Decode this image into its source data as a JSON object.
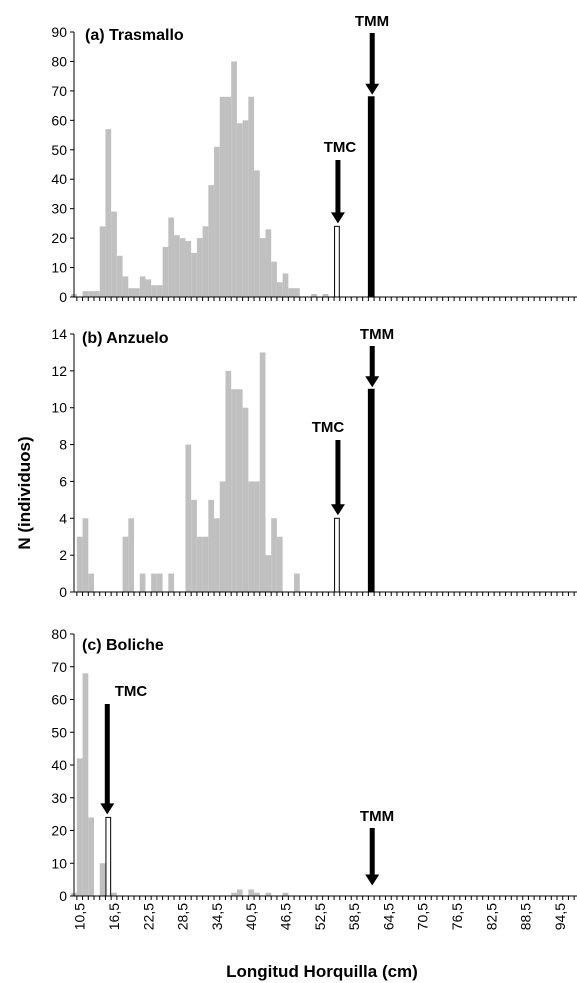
{
  "chart_data": {
    "type": "bar",
    "xlabel": "Longitud Horquilla (cm)",
    "ylabel": "N (individuos)",
    "x_tick_labels": [
      "10,5",
      "16,5",
      "22,5",
      "28,5",
      "34,5",
      "40,5",
      "46,5",
      "52,5",
      "58,5",
      "64,5",
      "70,5",
      "76,5",
      "82,5",
      "88,5",
      "94,5"
    ],
    "x": [
      9.5,
      10.5,
      11.5,
      12.5,
      13.5,
      14.5,
      15.5,
      16.5,
      17.5,
      18.5,
      19.5,
      20.5,
      21.5,
      22.5,
      23.5,
      24.5,
      25.5,
      26.5,
      27.5,
      28.5,
      29.5,
      30.5,
      31.5,
      32.5,
      33.5,
      34.5,
      35.5,
      36.5,
      37.5,
      38.5,
      39.5,
      40.5,
      41.5,
      42.5,
      43.5,
      44.5,
      45.5,
      46.5,
      47.5,
      48.5,
      49.5,
      50.5,
      51.5,
      52.5,
      53.5,
      54.5,
      55.5,
      56.5,
      57.5,
      58.5,
      59.5,
      60.5,
      61.5,
      62.5,
      63.5,
      64.5,
      65.5,
      66.5,
      67.5,
      68.5,
      69.5,
      70.5,
      71.5,
      72.5,
      73.5,
      74.5,
      75.5,
      76.5,
      77.5,
      78.5,
      79.5,
      80.5,
      81.5,
      82.5,
      83.5,
      84.5,
      85.5,
      86.5,
      87.5,
      88.5,
      89.5,
      90.5,
      91.5,
      92.5,
      93.5,
      94.5,
      95.5,
      96.5
    ],
    "panels": [
      {
        "title": "(a) Trasmallo",
        "ylim": [
          0,
          90
        ],
        "yticks": [
          0,
          10,
          20,
          30,
          40,
          50,
          60,
          70,
          80,
          90
        ],
        "values": [
          1,
          0,
          2,
          2,
          2,
          24,
          57,
          29,
          14,
          7,
          3,
          3,
          7,
          6,
          4,
          4,
          17,
          27,
          21,
          20,
          19,
          15,
          20,
          24,
          38,
          51,
          68,
          68,
          80,
          59,
          60,
          68,
          43,
          20,
          23,
          12,
          5,
          8,
          3,
          3,
          0,
          0,
          1,
          0,
          1
        ],
        "highlights": [
          {
            "x": 55.5,
            "value": 24,
            "style": "white",
            "label": "TMC"
          },
          {
            "x": 61.5,
            "value": 68,
            "style": "black",
            "label": "TMM"
          }
        ],
        "markers": [
          "TMC",
          "TMM"
        ]
      },
      {
        "title": "(b) Anzuelo",
        "ylim": [
          0,
          14
        ],
        "yticks": [
          0,
          2,
          4,
          6,
          8,
          10,
          12,
          14
        ],
        "values": [
          0,
          3,
          4,
          1,
          0,
          0,
          0,
          0,
          0,
          3,
          4,
          0,
          1,
          0,
          1,
          1,
          0,
          1,
          0,
          0,
          8,
          5,
          3,
          3,
          5,
          4,
          6,
          12,
          11,
          11,
          10,
          6,
          6,
          13,
          2,
          4,
          3,
          0,
          0,
          1,
          0,
          0,
          0,
          0,
          0,
          0
        ],
        "highlights": [
          {
            "x": 55.5,
            "value": 4,
            "style": "white",
            "label": "TMC"
          },
          {
            "x": 61.5,
            "value": 11,
            "style": "black",
            "label": "TMM"
          }
        ],
        "markers": [
          "TMC",
          "TMM"
        ]
      },
      {
        "title": "(c) Boliche",
        "ylim": [
          0,
          80
        ],
        "yticks": [
          0,
          10,
          20,
          30,
          40,
          50,
          60,
          70,
          80
        ],
        "values": [
          1,
          42,
          68,
          24,
          0,
          10,
          14,
          1,
          0,
          0,
          0,
          0,
          0,
          0,
          0,
          0,
          0,
          0,
          0,
          0,
          0,
          0,
          0,
          0,
          0,
          0,
          0,
          0,
          1,
          2,
          0,
          2,
          1,
          0,
          1,
          0,
          0,
          1,
          0,
          0,
          0,
          0,
          0,
          0,
          0,
          0
        ],
        "highlights": [
          {
            "x": 15.5,
            "value": 24,
            "style": "white",
            "label": "TMC"
          }
        ],
        "markers": [
          "TMC",
          "TMM"
        ]
      }
    ],
    "colors": {
      "bars": "#c0c0c0",
      "tmm_bar": "#000000",
      "tmc_bar": "#ffffff"
    }
  }
}
